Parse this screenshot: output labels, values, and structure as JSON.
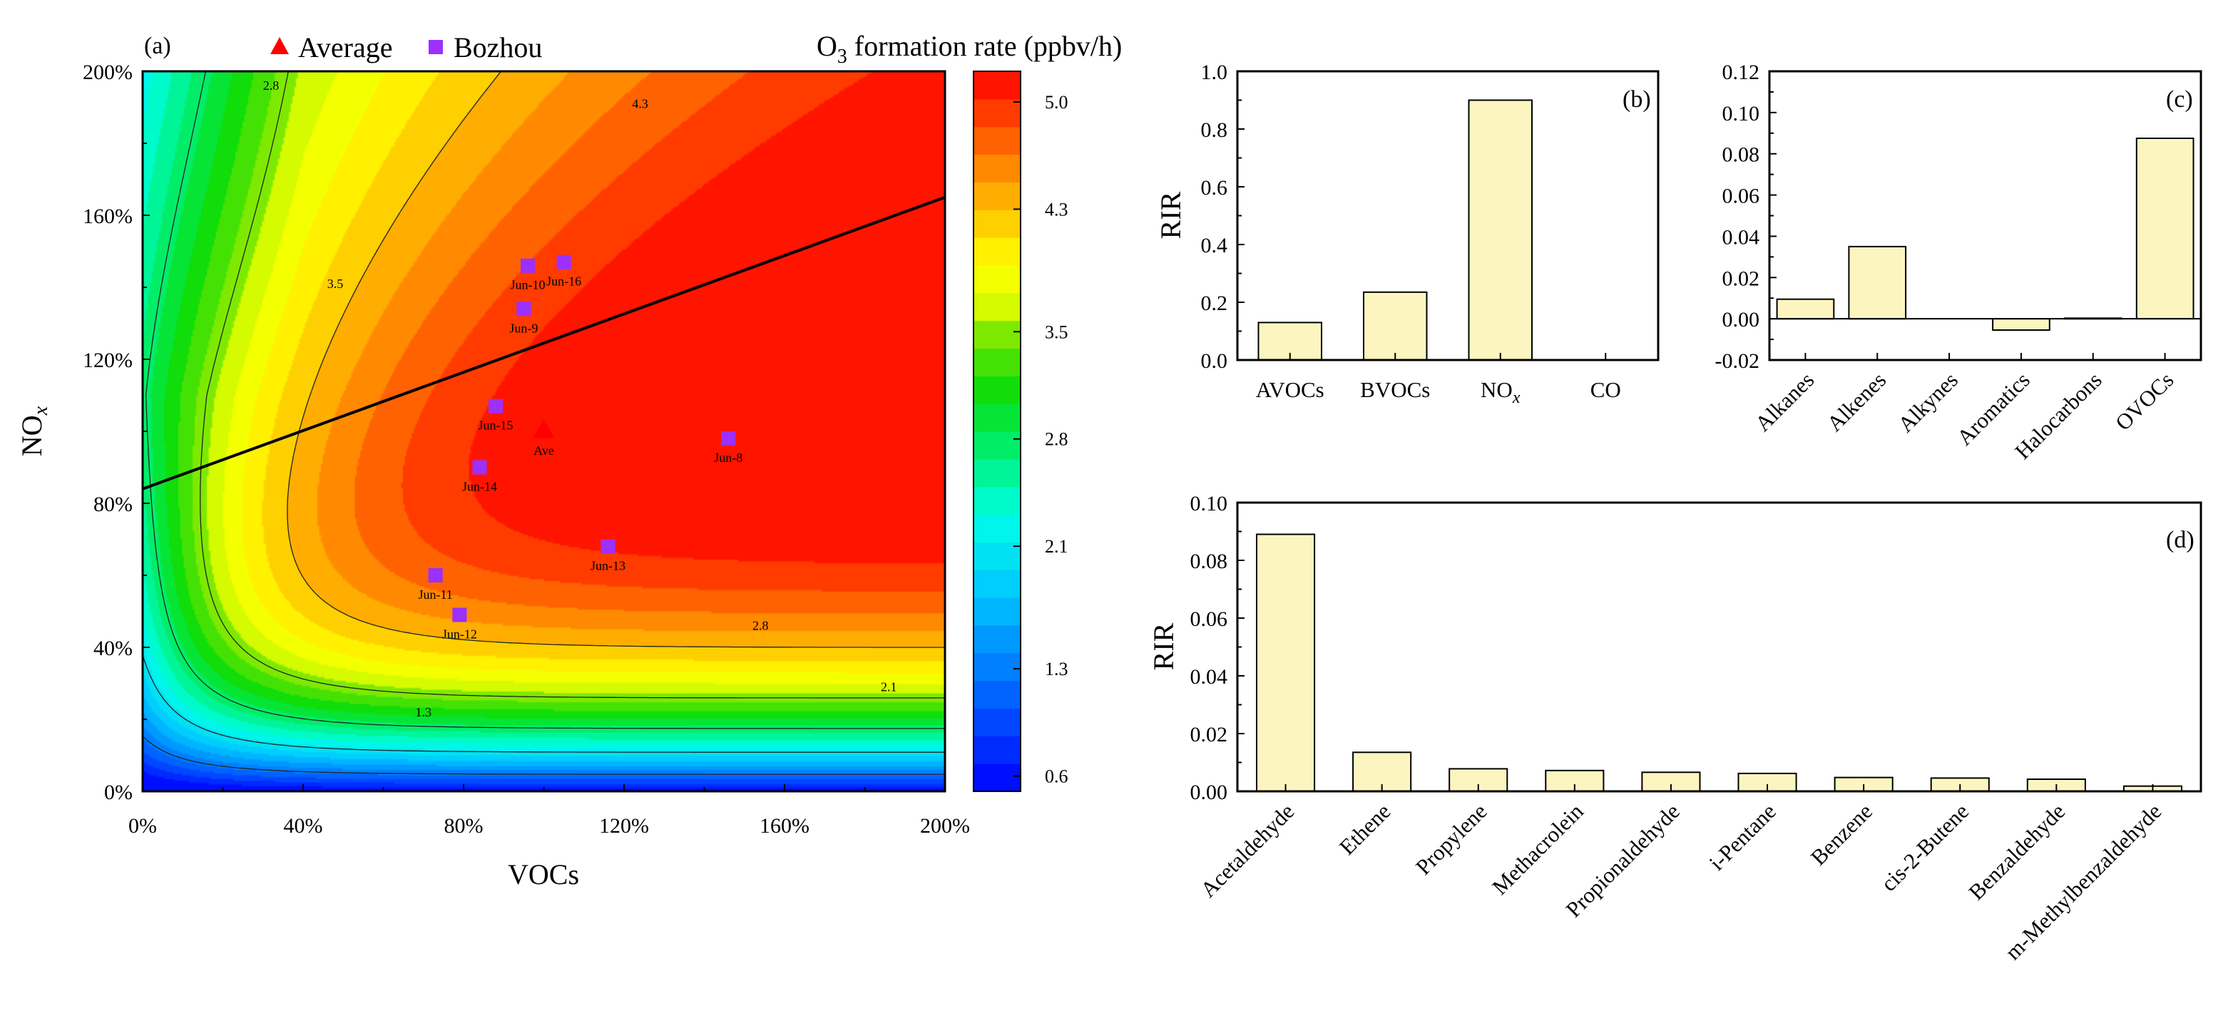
{
  "chart_data": [
    {
      "panel": "(a)",
      "type": "heatmap",
      "xlabel": "VOCs",
      "ylabel": "NO",
      "ylabel_sub": "x",
      "xlim": [
        0,
        200
      ],
      "ylim": [
        0,
        200
      ],
      "x_ticks": [
        "0%",
        "40%",
        "80%",
        "120%",
        "160%",
        "200%"
      ],
      "y_ticks": [
        "0%",
        "40%",
        "80%",
        "120%",
        "160%",
        "200%"
      ],
      "colorbar_title": "O",
      "colorbar_title_sub": "3",
      "colorbar_title_rest": " formation rate (ppbv/h)",
      "colorbar_range": [
        0.5,
        5.2
      ],
      "colorbar_ticks": [
        "0.6",
        "1.3",
        "2.1",
        "2.8",
        "3.5",
        "4.3",
        "5.0"
      ],
      "contour_labels": [
        "1.3",
        "2.1",
        "2.8",
        "2.8",
        "3.5",
        "4.3"
      ],
      "legend": {
        "average": "Average",
        "average_color": "#ff0000",
        "site": "Bozhou",
        "site_color": "#9b30ff"
      },
      "points": [
        {
          "label": "Ave",
          "x": 100,
          "y": 100,
          "kind": "average"
        },
        {
          "label": "Jun-8",
          "x": 146,
          "y": 98,
          "kind": "site"
        },
        {
          "label": "Jun-9",
          "x": 95,
          "y": 134,
          "kind": "site"
        },
        {
          "label": "Jun-10",
          "x": 96,
          "y": 146,
          "kind": "site"
        },
        {
          "label": "Jun-16",
          "x": 105,
          "y": 147,
          "kind": "site"
        },
        {
          "label": "Jun-15",
          "x": 88,
          "y": 107,
          "kind": "site"
        },
        {
          "label": "Jun-14",
          "x": 84,
          "y": 90,
          "kind": "site"
        },
        {
          "label": "Jun-13",
          "x": 116,
          "y": 68,
          "kind": "site"
        },
        {
          "label": "Jun-11",
          "x": 73,
          "y": 60,
          "kind": "site"
        },
        {
          "label": "Jun-12",
          "x": 79,
          "y": 49,
          "kind": "site"
        }
      ],
      "ridge_line": {
        "x": [
          0,
          200
        ],
        "y": [
          84,
          165
        ]
      }
    },
    {
      "panel": "(b)",
      "type": "bar",
      "ylabel": "RIR",
      "ylim": [
        0,
        1.0
      ],
      "y_ticks": [
        "0.0",
        "0.2",
        "0.4",
        "0.6",
        "0.8",
        "1.0"
      ],
      "categories": [
        "AVOCs",
        "BVOCs",
        "NO",
        "CO"
      ],
      "category_subs": [
        "",
        "",
        "x",
        ""
      ],
      "values": [
        0.13,
        0.235,
        0.9,
        0.0
      ]
    },
    {
      "panel": "(c)",
      "type": "bar",
      "ylim": [
        -0.02,
        0.12
      ],
      "y_ticks": [
        "-0.02",
        "0.00",
        "0.02",
        "0.04",
        "0.06",
        "0.08",
        "0.10",
        "0.12"
      ],
      "categories": [
        "Alkanes",
        "Alkenes",
        "Alkynes",
        "Aromatics",
        "Halocarbons",
        "OVOCs"
      ],
      "values": [
        0.0095,
        0.035,
        0.0,
        -0.0055,
        0.0003,
        0.0875
      ]
    },
    {
      "panel": "(d)",
      "type": "bar",
      "ylabel": "RIR",
      "ylim": [
        0,
        0.1
      ],
      "y_ticks": [
        "0.00",
        "0.02",
        "0.04",
        "0.06",
        "0.08",
        "0.10"
      ],
      "categories": [
        "Acetaldehyde",
        "Ethene",
        "Propylene",
        "Methacrolein",
        "Propionaldehyde",
        "i-Pentane",
        "Benzene",
        "cis-2-Butene",
        "Benzaldehyde",
        "m-Methylbenzaldehyde"
      ],
      "values": [
        0.089,
        0.0135,
        0.0078,
        0.0072,
        0.0066,
        0.0062,
        0.0048,
        0.0046,
        0.0042,
        0.0018
      ]
    }
  ],
  "colors": {
    "bar_fill": "#fdf5c0",
    "bar_stroke": "#000000"
  }
}
